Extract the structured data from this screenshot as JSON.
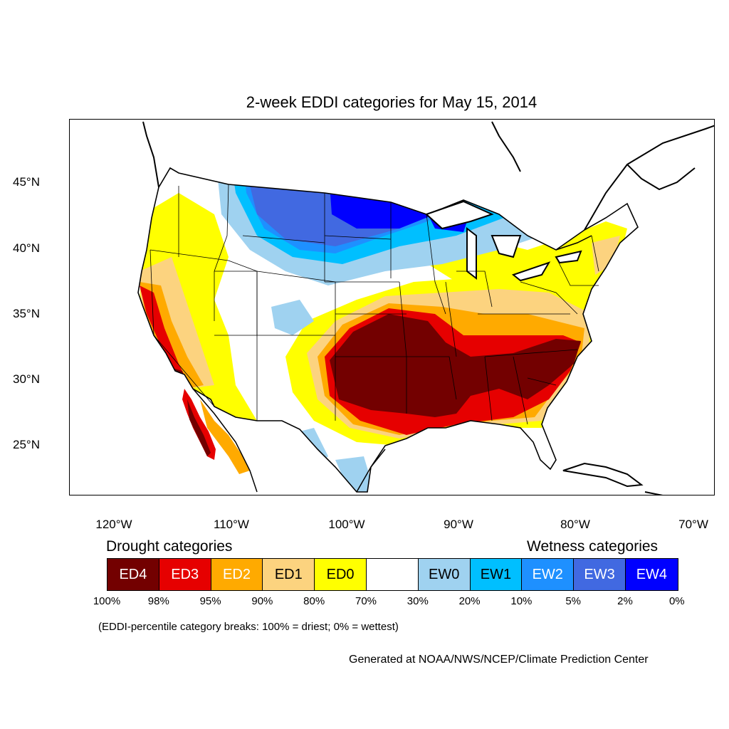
{
  "title": "2-week EDDI categories for May 15, 2014",
  "lat_labels": [
    "45°N",
    "40°N",
    "35°N",
    "30°N",
    "25°N"
  ],
  "lon_labels": [
    "120°W",
    "110°W",
    "100°W",
    "90°W",
    "80°W",
    "70°W"
  ],
  "legend": {
    "drought_heading": "Drought categories",
    "wetness_heading": "Wetness categories",
    "categories": [
      {
        "label": "ED4",
        "color": "#730000",
        "text_color": "#ffffff"
      },
      {
        "label": "ED3",
        "color": "#e60000",
        "text_color": "#ffffff"
      },
      {
        "label": "ED2",
        "color": "#ffaa00",
        "text_color": "#ffffff"
      },
      {
        "label": "ED1",
        "color": "#fcd37f",
        "text_color": "#000000"
      },
      {
        "label": "ED0",
        "color": "#ffff00",
        "text_color": "#000000"
      },
      {
        "label": "",
        "color": "#ffffff",
        "text_color": "#000000"
      },
      {
        "label": "EW0",
        "color": "#9fd2f0",
        "text_color": "#000000"
      },
      {
        "label": "EW1",
        "color": "#00bfff",
        "text_color": "#000000"
      },
      {
        "label": "EW2",
        "color": "#1e90ff",
        "text_color": "#ffffff"
      },
      {
        "label": "EW3",
        "color": "#4169e1",
        "text_color": "#ffffff"
      },
      {
        "label": "EW4",
        "color": "#0000ff",
        "text_color": "#ffffff"
      }
    ],
    "percentile_breaks": [
      "100%",
      "98%",
      "95%",
      "90%",
      "80%",
      "70%",
      "30%",
      "20%",
      "10%",
      "5%",
      "2%",
      "0%"
    ]
  },
  "note": "(EDDI-percentile category breaks: 100% = driest; 0% = wettest)",
  "credit": "Generated at NOAA/NWS/NCEP/Climate Prediction Center"
}
